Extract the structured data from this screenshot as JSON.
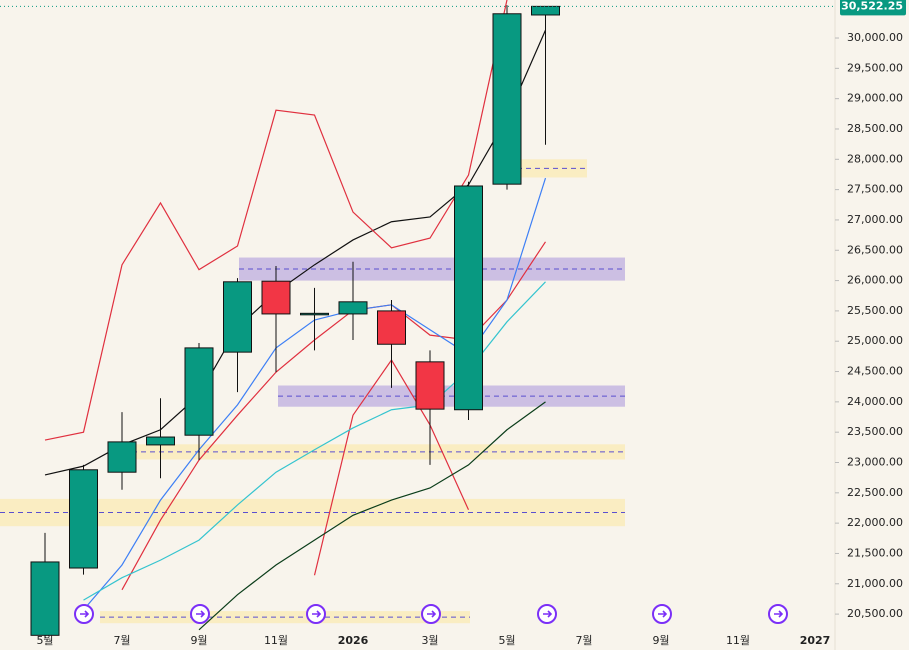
{
  "chart_data": {
    "type": "candlestick",
    "categories": [
      "5월",
      null,
      "7월",
      null,
      "9월",
      null,
      "11월",
      null,
      "2026",
      null,
      "3월",
      null,
      "5월",
      null,
      "7월",
      null,
      "9월",
      null,
      "11월",
      null,
      "2027"
    ],
    "open": [
      20150,
      21260,
      22840,
      23290,
      23450,
      24820,
      25990,
      25450,
      25450,
      25500,
      24660,
      23870,
      27590,
      30380,
      null,
      null,
      null,
      null,
      null,
      null,
      null
    ],
    "high": [
      21840,
      22960,
      23830,
      24060,
      24970,
      26040,
      26240,
      25880,
      26310,
      25680,
      24850,
      27630,
      30540,
      30522.25,
      null,
      null,
      null,
      null,
      null,
      null,
      null
    ],
    "low": [
      20100,
      21150,
      22550,
      22740,
      23040,
      24160,
      24490,
      24850,
      25020,
      24230,
      22960,
      23700,
      27500,
      28240,
      null,
      null,
      null,
      null,
      null,
      null,
      null
    ],
    "close": [
      21360,
      22880,
      23340,
      23420,
      24890,
      25980,
      25450,
      25460,
      25650,
      24950,
      23880,
      27560,
      30400,
      30522.25,
      null,
      null,
      null,
      null,
      null,
      null,
      null
    ],
    "up_color": "#089981",
    "down_color": "#f23645",
    "series": [
      {
        "color": "#111111",
        "values": [
          22795,
          22940,
          23290,
          23540,
          24110,
          25220,
          25810,
          26260,
          26670,
          26970,
          27050,
          27580,
          28680,
          30130,
          null,
          null,
          null,
          null,
          null,
          null,
          null
        ]
      },
      {
        "color": "#e0303f",
        "values": [
          23370,
          23500,
          26260,
          27280,
          26180,
          26570,
          28810,
          28730,
          27130,
          26540,
          26700,
          27740,
          30630,
          null,
          null,
          null,
          null,
          null,
          null,
          null,
          null
        ]
      },
      {
        "color": "#e0303f",
        "values": [
          null,
          null,
          20900,
          22050,
          23040,
          23780,
          24490,
          25020,
          25510,
          25600,
          25100,
          25020,
          25680,
          26640,
          null,
          null,
          null,
          null,
          null,
          null,
          null
        ]
      },
      {
        "color": "#e0303f",
        "values": [
          null,
          null,
          null,
          null,
          null,
          null,
          null,
          21140,
          23780,
          24690,
          23620,
          22220,
          null,
          null,
          null,
          null,
          null,
          null,
          null,
          null,
          null
        ]
      },
      {
        "color": "#3d7ff5",
        "values": [
          null,
          20570,
          21310,
          22380,
          23210,
          23950,
          24890,
          25350,
          25510,
          25600,
          25190,
          24780,
          25680,
          27690,
          null,
          null,
          null,
          null,
          null,
          null,
          null
        ]
      },
      {
        "color": "#35c4cf",
        "values": [
          null,
          20730,
          21100,
          21390,
          21720,
          22300,
          22840,
          23210,
          23570,
          23870,
          23950,
          24520,
          25320,
          25980,
          null,
          null,
          null,
          null,
          null,
          null,
          null
        ]
      },
      {
        "color": "#0b3d1a",
        "values": [
          null,
          null,
          null,
          null,
          20240,
          20820,
          21310,
          21720,
          22130,
          22380,
          22580,
          22960,
          23540,
          24000,
          null,
          null,
          null,
          null,
          null,
          null,
          null
        ]
      }
    ],
    "zones": [
      {
        "low": 26000,
        "high": 26380,
        "color": "#b9a8e0"
      },
      {
        "low": 23920,
        "high": 24270,
        "color": "#b9a8e0"
      },
      {
        "low": 23050,
        "high": 23300,
        "color": "#fbeab0"
      },
      {
        "low": 21950,
        "high": 22400,
        "color": "#fbeab0"
      },
      {
        "low": 27700,
        "high": 28000,
        "color": "#fbeab0"
      },
      {
        "low": 20350,
        "high": 20550,
        "color": "#fbeab0"
      }
    ],
    "ylim": [
      19908,
      30627
    ],
    "yticks": [
      {
        "value": 20500,
        "label": "20,500.00"
      },
      {
        "value": 21000,
        "label": "21,000.00"
      },
      {
        "value": 21500,
        "label": "21,500.00"
      },
      {
        "value": 22000,
        "label": "22,000.00"
      },
      {
        "value": 22500,
        "label": "22,500.00"
      },
      {
        "value": 23000,
        "label": "23,000.00"
      },
      {
        "value": 23500,
        "label": "23,500.00"
      },
      {
        "value": 24000,
        "label": "24,000.00"
      },
      {
        "value": 24500,
        "label": "24,500.00"
      },
      {
        "value": 25000,
        "label": "25,000.00"
      },
      {
        "value": 25500,
        "label": "25,500.00"
      },
      {
        "value": 26000,
        "label": "26,000.00"
      },
      {
        "value": 26500,
        "label": "26,500.00"
      },
      {
        "value": 27000,
        "label": "27,000.00"
      },
      {
        "value": 27500,
        "label": "27,500.00"
      },
      {
        "value": 28000,
        "label": "28,000.00"
      },
      {
        "value": 28500,
        "label": "28,500.00"
      },
      {
        "value": 29000,
        "label": "29,000.00"
      },
      {
        "value": 29500,
        "label": "29,500.00"
      },
      {
        "value": 30000,
        "label": "30,000.00"
      }
    ],
    "last_price": {
      "value": 30522.25,
      "label": "30,522.25"
    },
    "scale_mode": "A"
  }
}
